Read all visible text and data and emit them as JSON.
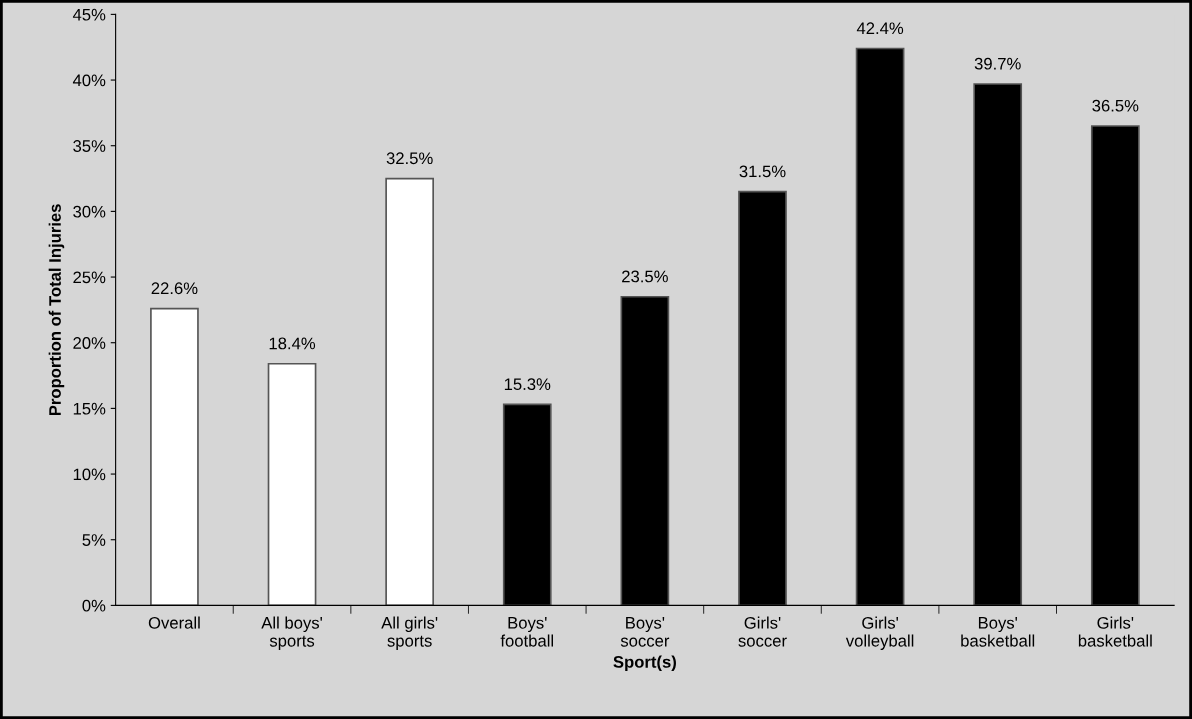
{
  "chart_data": {
    "type": "bar",
    "xlabel": "Sport(s)",
    "ylabel": "Proportion of Total Injuries",
    "categories": [
      "Overall",
      "All boys'\nsports",
      "All girls'\nsports",
      "Boys'\nfootball",
      "Boys'\nsoccer",
      "Girls'\nsoccer",
      "Girls'\nvolleyball",
      "Boys'\nbasketball",
      "Girls'\nbasketball"
    ],
    "values": [
      22.6,
      18.4,
      32.5,
      15.3,
      23.5,
      31.5,
      42.4,
      39.7,
      36.5
    ],
    "colors": [
      "#ffffff",
      "#ffffff",
      "#ffffff",
      "#000000",
      "#000000",
      "#000000",
      "#000000",
      "#000000",
      "#000000"
    ],
    "value_labels": [
      "22.6%",
      "18.4%",
      "32.5%",
      "15.3%",
      "23.5%",
      "31.5%",
      "42.4%",
      "39.7%",
      "36.5%"
    ],
    "ylim": [
      0,
      45
    ],
    "yticks": [
      {
        "value": 0,
        "label": "0%"
      },
      {
        "value": 5,
        "label": "5%"
      },
      {
        "value": 10,
        "label": "10%"
      },
      {
        "value": 15,
        "label": "15%"
      },
      {
        "value": 20,
        "label": "20%"
      },
      {
        "value": 25,
        "label": "25%"
      },
      {
        "value": 30,
        "label": "30%"
      },
      {
        "value": 35,
        "label": "35%"
      },
      {
        "value": 40,
        "label": "40%"
      },
      {
        "value": 45,
        "label": "45%"
      }
    ],
    "grid": false
  }
}
